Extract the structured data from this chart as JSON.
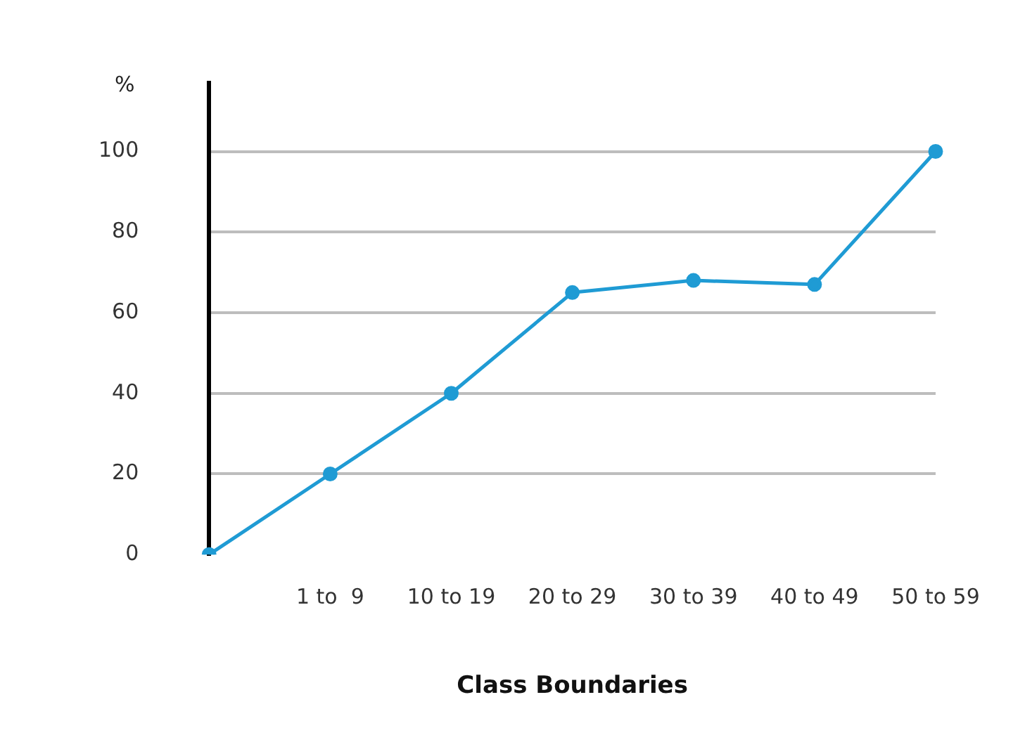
{
  "chart_data": {
    "type": "line",
    "xlabel": "Class Boundaries",
    "ylabel": "%",
    "categories": [
      null,
      "1 to  9",
      "10 to 19",
      "20 to 29",
      "30 to 39",
      "40 to 49",
      "50 to 59"
    ],
    "series": [
      {
        "color": "#1f9bd4",
        "values": [
          0,
          20,
          40,
          65,
          68,
          67,
          100
        ]
      }
    ],
    "ylim": [
      0,
      117
    ],
    "yticks": [
      0,
      20,
      40,
      60,
      80,
      100
    ],
    "grid": "y",
    "legend": false,
    "marker": "circle",
    "line_style": "solid"
  }
}
